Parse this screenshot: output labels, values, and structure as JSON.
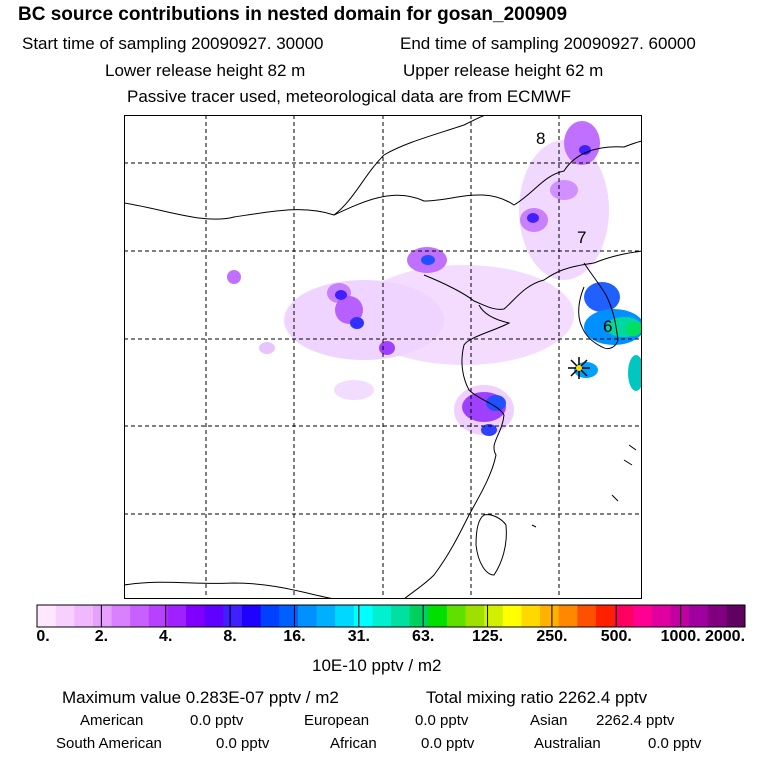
{
  "header": {
    "title": "BC  source contributions in nested domain for gosan_200909",
    "start_label": "Start time of sampling 20090927. 30000",
    "end_label": "End time of sampling 20090927. 60000",
    "lower_label": "Lower release height   82 m",
    "upper_label": "Upper release height   62 m",
    "tracer_note": "Passive tracer used, meteorological data are from ECMWF"
  },
  "map": {
    "grid_labels": [
      "8",
      "7",
      "6"
    ]
  },
  "colorbar": {
    "labels": [
      "0.",
      "2.",
      "4.",
      "8.",
      "16.",
      "31.",
      "63.",
      "125.",
      "250.",
      "500.",
      "1000.",
      "2000."
    ],
    "colors": [
      "#ffe8ff",
      "#f8d0ff",
      "#f0b8ff",
      "#e8a0ff",
      "#d880ff",
      "#c860ff",
      "#b840ff",
      "#a020ff",
      "#8000ff",
      "#6000ff",
      "#4020ff",
      "#2000ff",
      "#0040ff",
      "#0060ff",
      "#0090ff",
      "#00b0ff",
      "#00d8ff",
      "#00ffff",
      "#00f0d0",
      "#00e0a0",
      "#00d060",
      "#00e000",
      "#60e000",
      "#a0e000",
      "#d0f000",
      "#ffff00",
      "#ffd800",
      "#ffb000",
      "#ff8800",
      "#ff5000",
      "#ff2000",
      "#ff0060",
      "#ff0090",
      "#e000a0",
      "#c000a0",
      "#a000a0",
      "#800080",
      "#600060"
    ],
    "units": "10E-10 pptv / m2"
  },
  "stats": {
    "max_value": "Maximum value  0.283E-07 pptv / m2",
    "total_mixing": "Total mixing ratio     2262.4 pptv",
    "american_label": "American",
    "american_value": "0.0 pptv",
    "european_label": "European",
    "european_value": "0.0 pptv",
    "asian_label": "Asian",
    "asian_value": "2262.4 pptv",
    "south_american_label": "South American",
    "south_american_value": "0.0 pptv",
    "african_label": "African",
    "african_value": "0.0 pptv",
    "australian_label": "Australian",
    "australian_value": "0.0 pptv"
  }
}
